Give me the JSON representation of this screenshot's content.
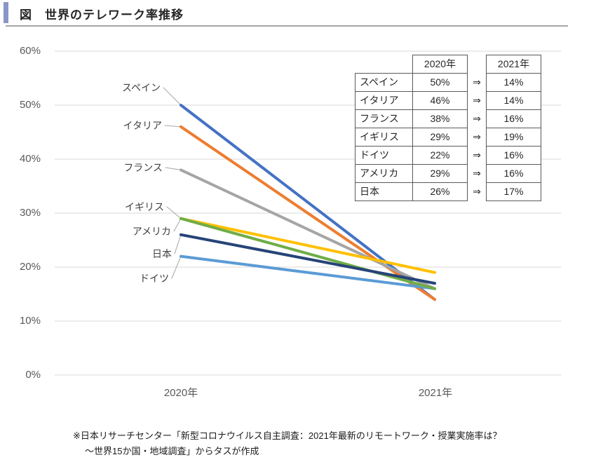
{
  "header": {
    "figure_title": "図　世界のテレワーク率推移"
  },
  "chart_data": {
    "type": "line",
    "x_categories": [
      "2020年",
      "2021年"
    ],
    "ylim": [
      0,
      60
    ],
    "ytick_step": 10,
    "ytick_labels": [
      "0%",
      "10%",
      "20%",
      "30%",
      "40%",
      "50%",
      "60%"
    ],
    "grid": true,
    "legend_position": "inline-labels-left",
    "series": [
      {
        "name": "スペイン",
        "values": [
          50,
          14
        ],
        "color": "#4472C4"
      },
      {
        "name": "イタリア",
        "values": [
          46,
          14
        ],
        "color": "#ED7D31"
      },
      {
        "name": "フランス",
        "values": [
          38,
          16
        ],
        "color": "#A5A5A5"
      },
      {
        "name": "イギリス",
        "values": [
          29,
          19
        ],
        "color": "#FFC000"
      },
      {
        "name": "ドイツ",
        "values": [
          22,
          16
        ],
        "color": "#5B9BD5"
      },
      {
        "name": "アメリカ",
        "values": [
          29,
          16
        ],
        "color": "#70AD47"
      },
      {
        "name": "日本",
        "values": [
          26,
          17
        ],
        "color": "#264478"
      }
    ]
  },
  "table": {
    "col_headers": [
      "2020年",
      "2021年"
    ],
    "arrow_symbol": "⇒",
    "rows": [
      {
        "country": "スペイン",
        "y2020": "50%",
        "y2021": "14%"
      },
      {
        "country": "イタリア",
        "y2020": "46%",
        "y2021": "14%"
      },
      {
        "country": "フランス",
        "y2020": "38%",
        "y2021": "16%"
      },
      {
        "country": "イギリス",
        "y2020": "29%",
        "y2021": "19%"
      },
      {
        "country": "ドイツ",
        "y2020": "22%",
        "y2021": "16%"
      },
      {
        "country": "アメリカ",
        "y2020": "29%",
        "y2021": "16%"
      },
      {
        "country": "日本",
        "y2020": "26%",
        "y2021": "17%"
      }
    ]
  },
  "footnote": {
    "line1": "※日本リサーチセンター「新型コロナウイルス自主調査：2021年最新のリモートワーク・授業実施率は？",
    "line2": "～世界15か国・地域調査」からタスが作成"
  },
  "colors": {
    "accent_bar": "#8A96C7",
    "title_rule": "#A6A6A6",
    "gridline": "#D9D9D9",
    "axis_text": "#595959",
    "series_label_text": "#404040",
    "table_border": "#595959"
  }
}
